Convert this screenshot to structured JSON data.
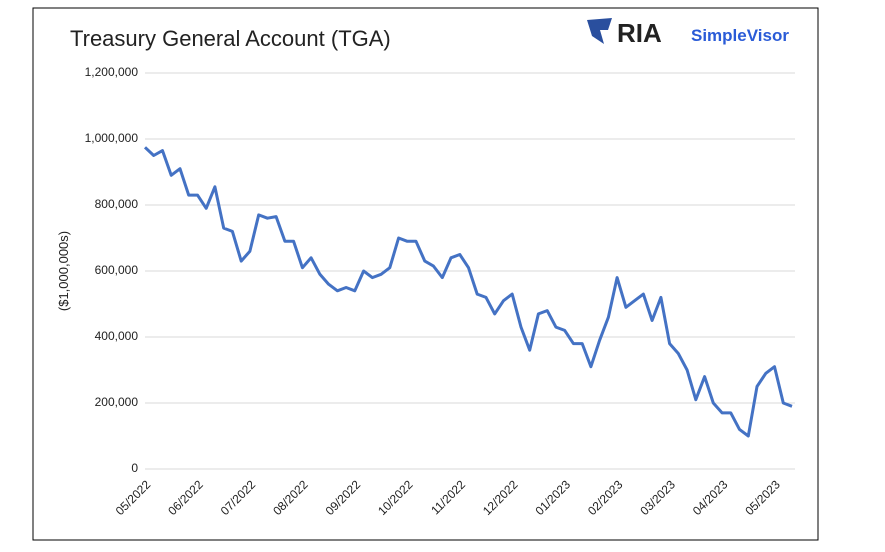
{
  "chart_data": {
    "type": "line",
    "title": "Treasury General Account (TGA)",
    "brand": "RIA",
    "brand_sub": "SimpleVisor",
    "y_label": "($1,000,000s)",
    "categories": [
      "05/2022",
      null,
      null,
      null,
      null,
      null,
      "06/2022",
      null,
      null,
      null,
      null,
      null,
      "07/2022",
      null,
      null,
      null,
      null,
      null,
      "08/2022",
      null,
      null,
      null,
      null,
      null,
      "09/2022",
      null,
      null,
      null,
      null,
      null,
      "10/2022",
      null,
      null,
      null,
      null,
      null,
      "11/2022",
      null,
      null,
      null,
      null,
      null,
      "12/2022",
      null,
      null,
      null,
      null,
      null,
      "01/2023",
      null,
      null,
      null,
      null,
      null,
      "02/2023",
      null,
      null,
      null,
      null,
      null,
      "03/2023",
      null,
      null,
      null,
      null,
      null,
      "04/2023",
      null,
      null,
      null,
      null,
      null,
      "05/2023",
      null,
      null
    ],
    "series": [
      {
        "name": "TGA",
        "color": "#4472c4",
        "values": [
          975000,
          950000,
          965000,
          890000,
          910000,
          830000,
          830000,
          790000,
          855000,
          730000,
          720000,
          630000,
          660000,
          770000,
          760000,
          765000,
          690000,
          690000,
          610000,
          640000,
          590000,
          560000,
          540000,
          550000,
          540000,
          600000,
          580000,
          590000,
          610000,
          700000,
          690000,
          690000,
          630000,
          615000,
          580000,
          640000,
          650000,
          610000,
          530000,
          520000,
          470000,
          510000,
          530000,
          430000,
          360000,
          470000,
          480000,
          430000,
          420000,
          380000,
          380000,
          310000,
          390000,
          460000,
          580000,
          490000,
          510000,
          530000,
          450000,
          520000,
          380000,
          350000,
          300000,
          210000,
          280000,
          200000,
          170000,
          170000,
          120000,
          100000,
          250000,
          290000,
          310000,
          200000,
          190000
        ]
      }
    ],
    "ylim": [
      0,
      1200000
    ],
    "yticks": [
      0,
      {
        "value": 200000,
        "label": "200,000"
      },
      {
        "value": 400000,
        "label": "400,000"
      },
      {
        "value": 600000,
        "label": "600,000"
      },
      {
        "value": 800000,
        "label": "800,000"
      },
      {
        "value": 1000000,
        "label": "1,000,000"
      },
      {
        "value": 1200000,
        "label": "1,200,000"
      }
    ],
    "grid": true
  }
}
